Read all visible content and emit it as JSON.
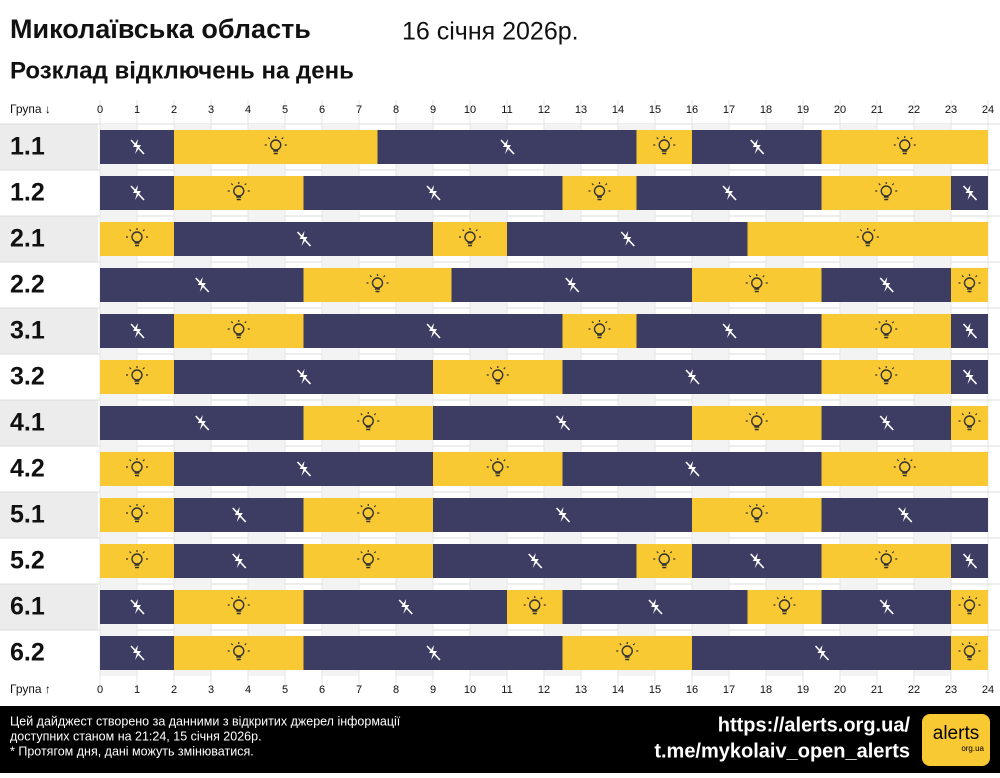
{
  "header": {
    "title": "Миколаївська область",
    "date": "16 січня 2026р.",
    "subtitle": "Розклад відключень на день"
  },
  "chart_data": {
    "type": "timeline",
    "axis_label_top": "Група ↓",
    "axis_label_bottom": "Група ↑",
    "xlim": [
      0,
      24
    ],
    "xticks": [
      0,
      1,
      2,
      3,
      4,
      5,
      6,
      7,
      8,
      9,
      10,
      11,
      12,
      13,
      14,
      15,
      16,
      17,
      18,
      19,
      20,
      21,
      22,
      23,
      24
    ],
    "colors": {
      "off": "#3d3d63",
      "on": "#f9c933"
    },
    "rows": [
      {
        "label": "1.1",
        "segments": [
          {
            "start": 0,
            "end": 2,
            "state": "off"
          },
          {
            "start": 2,
            "end": 7.5,
            "state": "on"
          },
          {
            "start": 7.5,
            "end": 14.5,
            "state": "off"
          },
          {
            "start": 14.5,
            "end": 16,
            "state": "on"
          },
          {
            "start": 16,
            "end": 19.5,
            "state": "off"
          },
          {
            "start": 19.5,
            "end": 24,
            "state": "on"
          }
        ]
      },
      {
        "label": "1.2",
        "segments": [
          {
            "start": 0,
            "end": 2,
            "state": "off"
          },
          {
            "start": 2,
            "end": 5.5,
            "state": "on"
          },
          {
            "start": 5.5,
            "end": 12.5,
            "state": "off"
          },
          {
            "start": 12.5,
            "end": 14.5,
            "state": "on"
          },
          {
            "start": 14.5,
            "end": 19.5,
            "state": "off"
          },
          {
            "start": 19.5,
            "end": 23,
            "state": "on"
          },
          {
            "start": 23,
            "end": 24,
            "state": "off"
          }
        ]
      },
      {
        "label": "2.1",
        "segments": [
          {
            "start": 0,
            "end": 2,
            "state": "on"
          },
          {
            "start": 2,
            "end": 9,
            "state": "off"
          },
          {
            "start": 9,
            "end": 11,
            "state": "on"
          },
          {
            "start": 11,
            "end": 17.5,
            "state": "off"
          },
          {
            "start": 17.5,
            "end": 24,
            "state": "on"
          }
        ]
      },
      {
        "label": "2.2",
        "segments": [
          {
            "start": 0,
            "end": 5.5,
            "state": "off"
          },
          {
            "start": 5.5,
            "end": 9.5,
            "state": "on"
          },
          {
            "start": 9.5,
            "end": 16,
            "state": "off"
          },
          {
            "start": 16,
            "end": 19.5,
            "state": "on"
          },
          {
            "start": 19.5,
            "end": 23,
            "state": "off"
          },
          {
            "start": 23,
            "end": 24,
            "state": "on"
          }
        ]
      },
      {
        "label": "3.1",
        "segments": [
          {
            "start": 0,
            "end": 2,
            "state": "off"
          },
          {
            "start": 2,
            "end": 5.5,
            "state": "on"
          },
          {
            "start": 5.5,
            "end": 12.5,
            "state": "off"
          },
          {
            "start": 12.5,
            "end": 14.5,
            "state": "on"
          },
          {
            "start": 14.5,
            "end": 19.5,
            "state": "off"
          },
          {
            "start": 19.5,
            "end": 23,
            "state": "on"
          },
          {
            "start": 23,
            "end": 24,
            "state": "off"
          }
        ]
      },
      {
        "label": "3.2",
        "segments": [
          {
            "start": 0,
            "end": 2,
            "state": "on"
          },
          {
            "start": 2,
            "end": 9,
            "state": "off"
          },
          {
            "start": 9,
            "end": 12.5,
            "state": "on"
          },
          {
            "start": 12.5,
            "end": 19.5,
            "state": "off"
          },
          {
            "start": 19.5,
            "end": 23,
            "state": "on"
          },
          {
            "start": 23,
            "end": 24,
            "state": "off"
          }
        ]
      },
      {
        "label": "4.1",
        "segments": [
          {
            "start": 0,
            "end": 5.5,
            "state": "off"
          },
          {
            "start": 5.5,
            "end": 9,
            "state": "on"
          },
          {
            "start": 9,
            "end": 16,
            "state": "off"
          },
          {
            "start": 16,
            "end": 19.5,
            "state": "on"
          },
          {
            "start": 19.5,
            "end": 23,
            "state": "off"
          },
          {
            "start": 23,
            "end": 24,
            "state": "on"
          }
        ]
      },
      {
        "label": "4.2",
        "segments": [
          {
            "start": 0,
            "end": 2,
            "state": "on"
          },
          {
            "start": 2,
            "end": 9,
            "state": "off"
          },
          {
            "start": 9,
            "end": 12.5,
            "state": "on"
          },
          {
            "start": 12.5,
            "end": 19.5,
            "state": "off"
          },
          {
            "start": 19.5,
            "end": 24,
            "state": "on"
          }
        ]
      },
      {
        "label": "5.1",
        "segments": [
          {
            "start": 0,
            "end": 2,
            "state": "on"
          },
          {
            "start": 2,
            "end": 5.5,
            "state": "off"
          },
          {
            "start": 5.5,
            "end": 9,
            "state": "on"
          },
          {
            "start": 9,
            "end": 16,
            "state": "off"
          },
          {
            "start": 16,
            "end": 19.5,
            "state": "on"
          },
          {
            "start": 19.5,
            "end": 24,
            "state": "off"
          }
        ]
      },
      {
        "label": "5.2",
        "segments": [
          {
            "start": 0,
            "end": 2,
            "state": "on"
          },
          {
            "start": 2,
            "end": 5.5,
            "state": "off"
          },
          {
            "start": 5.5,
            "end": 9,
            "state": "on"
          },
          {
            "start": 9,
            "end": 14.5,
            "state": "off"
          },
          {
            "start": 14.5,
            "end": 16,
            "state": "on"
          },
          {
            "start": 16,
            "end": 19.5,
            "state": "off"
          },
          {
            "start": 19.5,
            "end": 23,
            "state": "on"
          },
          {
            "start": 23,
            "end": 24,
            "state": "off"
          }
        ]
      },
      {
        "label": "6.1",
        "segments": [
          {
            "start": 0,
            "end": 2,
            "state": "off"
          },
          {
            "start": 2,
            "end": 5.5,
            "state": "on"
          },
          {
            "start": 5.5,
            "end": 11,
            "state": "off"
          },
          {
            "start": 11,
            "end": 12.5,
            "state": "on"
          },
          {
            "start": 12.5,
            "end": 17.5,
            "state": "off"
          },
          {
            "start": 17.5,
            "end": 19.5,
            "state": "on"
          },
          {
            "start": 19.5,
            "end": 23,
            "state": "off"
          },
          {
            "start": 23,
            "end": 24,
            "state": "on"
          }
        ]
      },
      {
        "label": "6.2",
        "segments": [
          {
            "start": 0,
            "end": 2,
            "state": "off"
          },
          {
            "start": 2,
            "end": 5.5,
            "state": "on"
          },
          {
            "start": 5.5,
            "end": 12.5,
            "state": "off"
          },
          {
            "start": 12.5,
            "end": 16,
            "state": "on"
          },
          {
            "start": 16,
            "end": 23,
            "state": "off"
          },
          {
            "start": 23,
            "end": 24,
            "state": "on"
          }
        ]
      }
    ]
  },
  "footer": {
    "lines": [
      "Цей дайджест створено за данними з відкритих джерел інформації",
      "доступних станом на 21:24, 15 січня 2026р.",
      "* Протягом дня, дані можуть змінюватися."
    ],
    "links": [
      "https://alerts.org.ua/",
      "t.me/mykolaiv_open_alerts"
    ],
    "logo": "alerts",
    "logo_sub": "org.ua"
  }
}
